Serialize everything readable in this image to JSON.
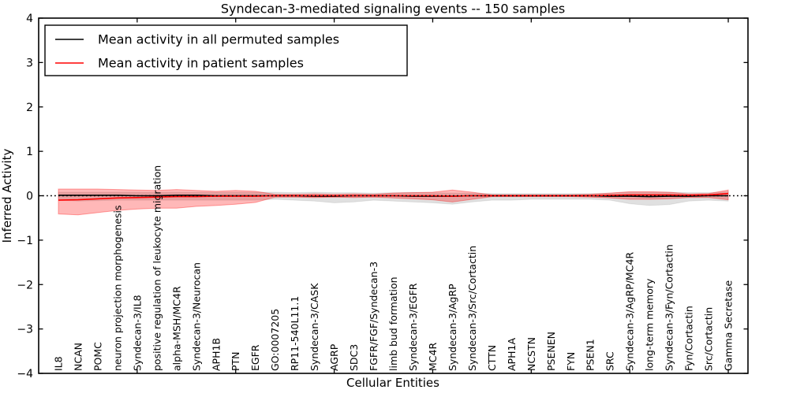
{
  "figure": {
    "background": "#ffffff",
    "frame_color": "#000000"
  },
  "chart_data": {
    "type": "line",
    "title": "Syndecan-3-mediated signaling events -- 150 samples",
    "xlabel": "Cellular Entities",
    "ylabel": "Inferred Activity",
    "ylim": [
      -4,
      4
    ],
    "yticks": [
      4,
      3,
      2,
      1,
      0,
      -1,
      -2,
      -3,
      -4
    ],
    "ytick_labels": [
      "4",
      "3",
      "2",
      "1",
      "0",
      "−1",
      "−2",
      "−3",
      "−4"
    ],
    "x_index_ticks": [
      5,
      10,
      15,
      20,
      25,
      30,
      35
    ],
    "grid": false,
    "legend_position": "upper left",
    "zero_line": {
      "y": 0,
      "style": "dotted",
      "color": "#000000"
    },
    "categories": [
      "IL8",
      "NCAN",
      "POMC",
      "neuron projection morphogenesis",
      "Syndecan-3/IL8",
      "positive regulation of leukocyte migration",
      "alpha-MSH/MC4R",
      "Syndecan-3/Neurocan",
      "APH1B",
      "PTN",
      "EGFR",
      "GO:0007205",
      "RP11-540L11.1",
      "Syndecan-3/CASK",
      "AGRP",
      "SDC3",
      "FGFR/FGF/Syndecan-3",
      "limb bud formation",
      "Syndecan-3/EGFR",
      "MC4R",
      "Syndecan-3/AgRP",
      "Syndecan-3/Src/Cortactin",
      "CTTN",
      "APH1A",
      "NCSTN",
      "PSENEN",
      "FYN",
      "PSEN1",
      "SRC",
      "Syndecan-3/AgRP/MC4R",
      "long-term memory",
      "Syndecan-3/Fyn/Cortactin",
      "Fyn/Cortactin",
      "Src/Cortactin",
      "Gamma Secretase"
    ],
    "series": [
      {
        "name": "Mean activity in all permuted samples",
        "color": "#000000",
        "values": [
          0.01,
          0.01,
          0.01,
          0.01,
          0.0,
          0.0,
          0.01,
          0.01,
          0.0,
          0.0,
          0.0,
          0.0,
          0.0,
          -0.01,
          -0.01,
          0.0,
          0.0,
          0.0,
          -0.01,
          -0.01,
          -0.01,
          0.0,
          0.0,
          0.0,
          0.0,
          0.0,
          0.0,
          0.0,
          -0.01,
          -0.01,
          -0.02,
          -0.01,
          -0.01,
          0.0,
          0.0
        ]
      },
      {
        "name": "Mean activity in patient samples",
        "color": "#ff0000",
        "values": [
          -0.1,
          -0.09,
          -0.07,
          -0.05,
          -0.04,
          -0.03,
          -0.02,
          -0.02,
          -0.01,
          -0.01,
          -0.01,
          0.0,
          0.0,
          0.0,
          0.0,
          0.0,
          0.0,
          0.0,
          0.0,
          0.0,
          -0.01,
          0.0,
          0.0,
          0.0,
          0.0,
          0.0,
          0.0,
          0.0,
          0.01,
          0.02,
          0.02,
          0.02,
          0.01,
          0.02,
          0.05
        ]
      }
    ],
    "bands": [
      {
        "name": "permuted samples std band",
        "color": "#000000",
        "opacity": 0.12,
        "upper": [
          0.08,
          0.08,
          0.08,
          0.08,
          0.08,
          0.08,
          0.08,
          0.08,
          0.08,
          0.08,
          0.08,
          0.08,
          0.07,
          0.08,
          0.07,
          0.07,
          0.06,
          0.07,
          0.08,
          0.07,
          0.06,
          0.06,
          0.05,
          0.05,
          0.05,
          0.05,
          0.05,
          0.05,
          0.06,
          0.08,
          0.08,
          0.08,
          0.07,
          0.07,
          0.09
        ],
        "lower": [
          -0.1,
          -0.12,
          -0.11,
          -0.1,
          -0.1,
          -0.1,
          -0.1,
          -0.1,
          -0.1,
          -0.1,
          -0.1,
          -0.08,
          -0.1,
          -0.12,
          -0.16,
          -0.14,
          -0.1,
          -0.12,
          -0.14,
          -0.16,
          -0.19,
          -0.14,
          -0.1,
          -0.1,
          -0.08,
          -0.08,
          -0.08,
          -0.08,
          -0.1,
          -0.18,
          -0.22,
          -0.2,
          -0.12,
          -0.1,
          -0.12
        ]
      },
      {
        "name": "patient samples std band",
        "color": "#ff0000",
        "opacity": 0.28,
        "upper": [
          0.15,
          0.15,
          0.15,
          0.14,
          0.13,
          0.12,
          0.14,
          0.12,
          0.1,
          0.12,
          0.1,
          0.03,
          0.03,
          0.04,
          0.03,
          0.04,
          0.03,
          0.06,
          0.07,
          0.08,
          0.13,
          0.08,
          0.02,
          0.02,
          0.02,
          0.02,
          0.02,
          0.03,
          0.06,
          0.09,
          0.09,
          0.08,
          0.04,
          0.05,
          0.13
        ],
        "lower": [
          -0.41,
          -0.43,
          -0.38,
          -0.33,
          -0.3,
          -0.28,
          -0.28,
          -0.24,
          -0.22,
          -0.19,
          -0.15,
          -0.03,
          -0.03,
          -0.04,
          -0.03,
          -0.04,
          -0.03,
          -0.05,
          -0.07,
          -0.09,
          -0.14,
          -0.08,
          -0.02,
          -0.02,
          -0.02,
          -0.02,
          -0.02,
          -0.03,
          -0.05,
          -0.08,
          -0.08,
          -0.07,
          -0.04,
          -0.04,
          -0.09
        ]
      }
    ]
  }
}
